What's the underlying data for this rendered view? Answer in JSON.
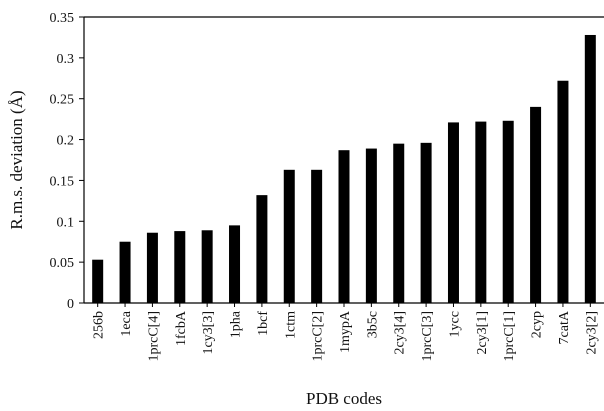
{
  "chart_data": {
    "type": "bar",
    "title": "",
    "xlabel": "PDB codes",
    "ylabel": "R.m.s. deviation (Å)",
    "ylim": [
      0,
      0.35
    ],
    "yticks": [
      "0",
      "0.05",
      "0.1",
      "0.15",
      "0.2",
      "0.25",
      "0.3",
      "0.35"
    ],
    "ytick_values": [
      0,
      0.05,
      0.1,
      0.15,
      0.2,
      0.25,
      0.3,
      0.35
    ],
    "grid": false,
    "legend": "none",
    "bar_color": "#000000",
    "categories": [
      "256b",
      "1eca",
      "1prcC[4]",
      "1fcbA",
      "1cy3[3]",
      "1pha",
      "1bcf",
      "1ctm",
      "1prcC[2]",
      "1mypA",
      "3b5c",
      "2cy3[4]",
      "1prcC[3]",
      "1ycc",
      "2cy3[1]",
      "1prcC[1]",
      "2cyp",
      "7catA",
      "2cy3[2]"
    ],
    "values": [
      0.053,
      0.075,
      0.086,
      0.088,
      0.089,
      0.095,
      0.132,
      0.163,
      0.163,
      0.187,
      0.189,
      0.195,
      0.196,
      0.221,
      0.222,
      0.223,
      0.24,
      0.272,
      0.328
    ]
  }
}
